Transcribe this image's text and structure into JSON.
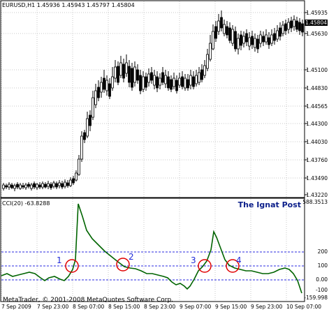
{
  "window": {
    "symbol_line": "EURUSD,H1  1.45936 1.45943 1.45797 1.45804",
    "cci_label": "CCI(20) -63.8288",
    "watermark": "The Ignat Post",
    "copyright": "MetaTrader, © 2001-2008 MetaQuotes Software Corp."
  },
  "price_axis": {
    "ticks": [
      "1.45935",
      "1.45804",
      "1.45630",
      "1.45100",
      "1.44830",
      "1.44565",
      "1.44300",
      "1.44030",
      "1.43760",
      "1.43490",
      "1.43220"
    ],
    "current": "1.45804"
  },
  "cci_axis": {
    "ticks": [
      "588.3513",
      "200",
      "100",
      "0.00",
      "-100",
      "-159.998"
    ]
  },
  "time_axis": {
    "labels": [
      "7 Sep 2009",
      "7 Sep 23:00",
      "8 Sep 07:00",
      "8 Sep 15:00",
      "8 Sep 23:00",
      "9 Sep 07:00",
      "9 Sep 15:00",
      "9 Sep 23:00",
      "10 Sep 07:00"
    ]
  },
  "markers": [
    {
      "label": "1"
    },
    {
      "label": "2"
    },
    {
      "label": "3"
    },
    {
      "label": "4"
    }
  ],
  "colors": {
    "cci_line": "#006400",
    "circle": "#e00000",
    "level_line": "#2a2ae0",
    "grid": "#c8c8c8",
    "bull_candle": "#ffffff",
    "bear_candle": "#000000"
  }
}
